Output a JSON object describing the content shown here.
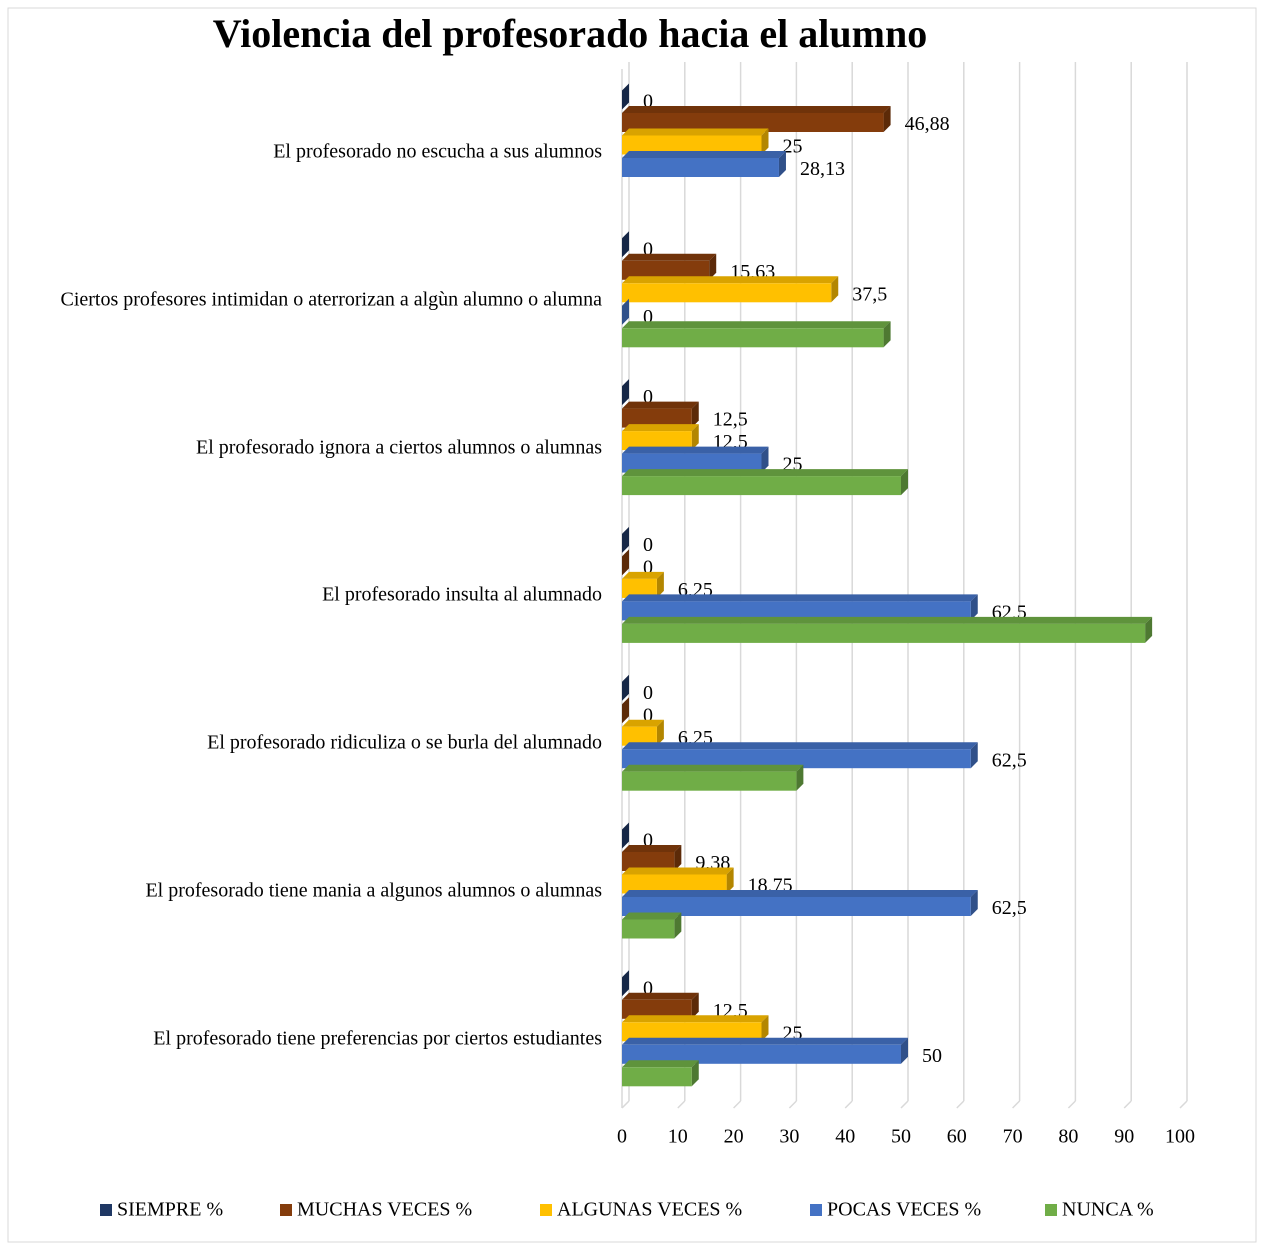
{
  "chart_data": {
    "type": "bar3d_horizontal",
    "title": "Violencia del profesorado hacia el alumno",
    "categories": [
      "El profesorado no escucha a sus alumnos",
      "Ciertos profesores intimidan o aterrorizan a algùn alumno o alumna",
      "El profesorado ignora a ciertos alumnos o alumnas",
      "El profesorado insulta al alumnado",
      "El profesorado ridiculiza o se burla del alumnado",
      "El profesorado tiene mania a algunos alumnos o alumnas",
      "El profesorado tiene preferencias por ciertos estudiantes"
    ],
    "series": [
      {
        "name": "SIEMPRE %",
        "color": "#1f3864",
        "values": [
          0,
          0,
          0,
          0,
          0,
          0,
          0
        ],
        "value_labels": [
          "0",
          "0",
          "0",
          "0",
          "0",
          "0",
          "0"
        ]
      },
      {
        "name": "MUCHAS VECES %",
        "color": "#843c0c",
        "values": [
          46.88,
          15.63,
          12.5,
          0,
          0,
          9.38,
          12.5
        ],
        "value_labels": [
          "46,88",
          "15,63",
          "12,5",
          "0",
          "0",
          "9,38",
          "12,5"
        ]
      },
      {
        "name": "ALGUNAS VECES %",
        "color": "#ffc000",
        "values": [
          25,
          37.5,
          12.5,
          6.25,
          6.25,
          18.75,
          25
        ],
        "value_labels": [
          "25",
          "37,5",
          "12,5",
          "6,25",
          "6,25",
          "18,75",
          "25"
        ]
      },
      {
        "name": "POCAS VECES %",
        "color": "#4472c4",
        "values": [
          28.13,
          0,
          25,
          62.5,
          62.5,
          62.5,
          50
        ],
        "value_labels": [
          "28,13",
          "0",
          "25",
          "62,5",
          "62,5",
          "62,5",
          "50"
        ]
      },
      {
        "name": "NUNCA %",
        "color": "#70ad47",
        "values": [
          null,
          46.88,
          50,
          93.75,
          31.25,
          9.38,
          12.5
        ],
        "value_labels": [
          null,
          null,
          null,
          null,
          null,
          null,
          null
        ]
      }
    ],
    "xlim": [
      0,
      100
    ],
    "xticks": [
      0,
      10,
      20,
      30,
      40,
      50,
      60,
      70,
      80,
      90,
      100
    ],
    "grid": true,
    "legend": "bottom"
  }
}
